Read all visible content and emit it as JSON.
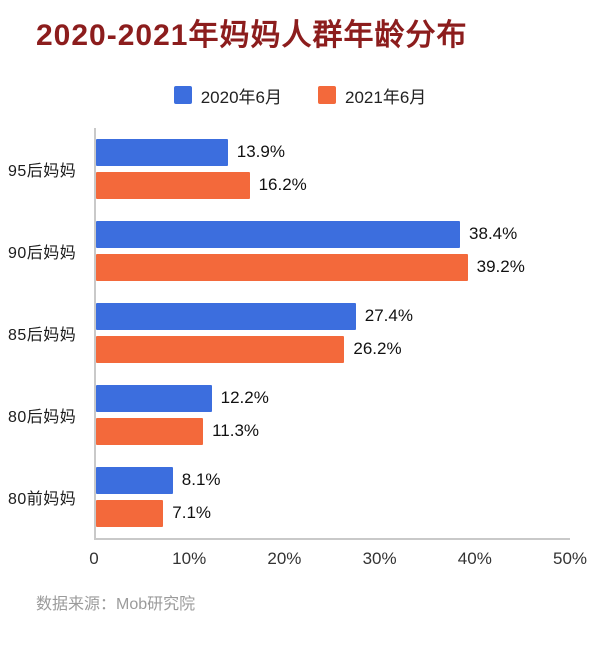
{
  "page": {
    "source": "数据来源：Mob研究院"
  },
  "colors": {
    "title": "#8C1D1D",
    "series_2020": "#3C6EDE",
    "series_2021": "#F3693B",
    "axis": "#C9C9C9",
    "value_label": "#111111",
    "background": "#FFFFFF"
  },
  "chart_data": {
    "type": "bar",
    "orientation": "horizontal",
    "title": "2020-2021年妈妈人群年龄分布",
    "categories": [
      "95后妈妈",
      "90后妈妈",
      "85后妈妈",
      "80后妈妈",
      "80前妈妈"
    ],
    "series": [
      {
        "name": "2020年6月",
        "color": "#3C6EDE",
        "values": [
          13.9,
          38.4,
          27.4,
          12.2,
          8.1
        ]
      },
      {
        "name": "2021年6月",
        "color": "#F3693B",
        "values": [
          16.2,
          39.2,
          26.2,
          11.3,
          7.1
        ]
      }
    ],
    "value_suffix": "%",
    "x_ticks": [
      "0",
      "10%",
      "20%",
      "30%",
      "40%",
      "50%"
    ],
    "xlim": [
      0,
      50
    ],
    "grid": false,
    "legend_position": "top"
  }
}
